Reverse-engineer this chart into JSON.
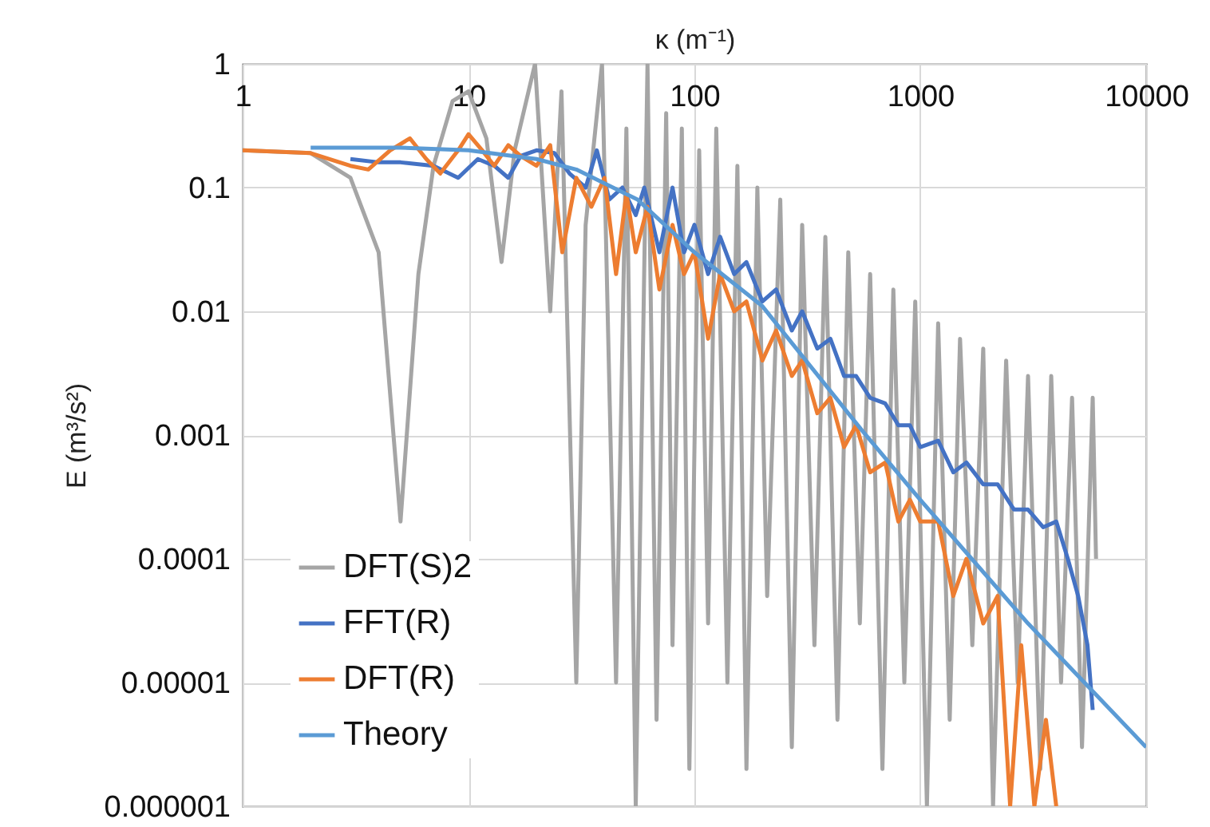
{
  "chart_data": {
    "type": "line",
    "xlabel": "κ (m⁻¹)",
    "ylabel": "E (m³/s²)",
    "log": "xy",
    "grid": true,
    "legend": "bottom left",
    "xlim": [
      1,
      10000
    ],
    "ylim": [
      1e-06,
      1
    ],
    "xticks": [
      1,
      10,
      100,
      1000,
      10000
    ],
    "yticks": [
      {
        "value": 1e-06,
        "label": "0.000001"
      },
      {
        "value": 1e-05,
        "label": "0.00001"
      },
      0.0001,
      0.001,
      0.01,
      0.1,
      1
    ],
    "series": [
      {
        "name": "DFT(S)2",
        "color": "#a5a5a5",
        "x": [
          1,
          2,
          3,
          4,
          5,
          6,
          7,
          8.5,
          10,
          12,
          14,
          16,
          19.7,
          23,
          25.8,
          30,
          33,
          39,
          45,
          50,
          55,
          62,
          68,
          75,
          80,
          88,
          95,
          105,
          115,
          125,
          140,
          155,
          170,
          190,
          210,
          240,
          270,
          300,
          340,
          380,
          430,
          480,
          540,
          600,
          680,
          760,
          850,
          950,
          1070,
          1200,
          1350,
          1500,
          1700,
          1900,
          2100,
          2400,
          2700,
          3000,
          3400,
          3800,
          4200,
          4700,
          5200,
          5800,
          6000
        ],
        "values": [
          0.2,
          0.19,
          0.12,
          0.03,
          0.0002,
          0.02,
          0.15,
          0.5,
          0.6,
          0.25,
          0.025,
          0.2,
          1,
          0.01,
          0.6,
          1e-05,
          0.05,
          1,
          1e-05,
          0.3,
          1e-06,
          1,
          5e-06,
          0.4,
          2e-05,
          0.3,
          2e-06,
          0.2,
          3e-05,
          0.3,
          1e-05,
          0.15,
          2e-06,
          0.1,
          5e-05,
          0.08,
          3e-06,
          0.05,
          2e-05,
          0.04,
          5e-06,
          0.03,
          3e-05,
          0.02,
          2e-06,
          0.015,
          1e-05,
          0.012,
          1e-06,
          0.008,
          5e-06,
          0.006,
          2e-05,
          0.005,
          1e-06,
          0.004,
          1e-05,
          0.003,
          2e-06,
          0.003,
          1e-05,
          0.002,
          3e-06,
          0.002,
          0.0001
        ]
      },
      {
        "name": "FFT(R)",
        "color": "#4472c4",
        "x": [
          3,
          4,
          5,
          7,
          9,
          11,
          13,
          15,
          17,
          20,
          24,
          28,
          33,
          37,
          42,
          48,
          55,
          60,
          70,
          80,
          90,
          100,
          115,
          130,
          150,
          170,
          200,
          230,
          270,
          300,
          350,
          400,
          460,
          520,
          600,
          700,
          800,
          900,
          1000,
          1200,
          1400,
          1600,
          1900,
          2200,
          2600,
          3000,
          3500,
          4000,
          4500,
          5000,
          5500,
          5800
        ],
        "values": [
          0.17,
          0.16,
          0.16,
          0.15,
          0.12,
          0.17,
          0.15,
          0.12,
          0.18,
          0.2,
          0.19,
          0.13,
          0.1,
          0.2,
          0.08,
          0.1,
          0.06,
          0.1,
          0.03,
          0.1,
          0.03,
          0.05,
          0.02,
          0.04,
          0.02,
          0.025,
          0.012,
          0.015,
          0.007,
          0.01,
          0.005,
          0.006,
          0.003,
          0.003,
          0.002,
          0.0018,
          0.0012,
          0.0012,
          0.0008,
          0.0009,
          0.0005,
          0.0006,
          0.0004,
          0.0004,
          0.00025,
          0.00025,
          0.00018,
          0.0002,
          0.0001,
          5e-05,
          2e-05,
          6e-06
        ]
      },
      {
        "name": "DFT(R)",
        "color": "#ed7d31",
        "x": [
          1,
          2,
          3,
          3.6,
          4.5,
          5.5,
          6.5,
          7.5,
          9,
          10,
          11.5,
          13,
          15,
          17,
          20,
          23,
          26,
          30,
          35,
          40,
          45,
          50,
          55,
          62,
          70,
          80,
          90,
          100,
          115,
          130,
          150,
          170,
          200,
          230,
          270,
          300,
          350,
          400,
          460,
          520,
          600,
          700,
          800,
          900,
          1000,
          1200,
          1400,
          1600,
          1900,
          2200,
          2500,
          2800,
          3200,
          3600,
          4000
        ],
        "values": [
          0.2,
          0.19,
          0.15,
          0.14,
          0.2,
          0.25,
          0.17,
          0.13,
          0.2,
          0.27,
          0.2,
          0.15,
          0.22,
          0.18,
          0.15,
          0.22,
          0.03,
          0.12,
          0.07,
          0.12,
          0.02,
          0.09,
          0.03,
          0.07,
          0.015,
          0.05,
          0.02,
          0.03,
          0.006,
          0.02,
          0.01,
          0.012,
          0.004,
          0.007,
          0.003,
          0.004,
          0.0015,
          0.002,
          0.0008,
          0.0012,
          0.0005,
          0.0006,
          0.0002,
          0.0003,
          0.0002,
          0.0002,
          5e-05,
          0.0001,
          3e-05,
          5e-05,
          1e-06,
          2e-05,
          1e-06,
          5e-06,
          1e-06
        ]
      },
      {
        "name": "Theory",
        "color": "#5b9bd5",
        "x": [
          2,
          5,
          10,
          20,
          30,
          56,
          100,
          200,
          550,
          1000,
          3000,
          10000
        ],
        "values": [
          0.21,
          0.21,
          0.2,
          0.17,
          0.14,
          0.08,
          0.03,
          0.011,
          0.0011,
          0.0003,
          3e-05,
          3e-06
        ]
      }
    ]
  }
}
